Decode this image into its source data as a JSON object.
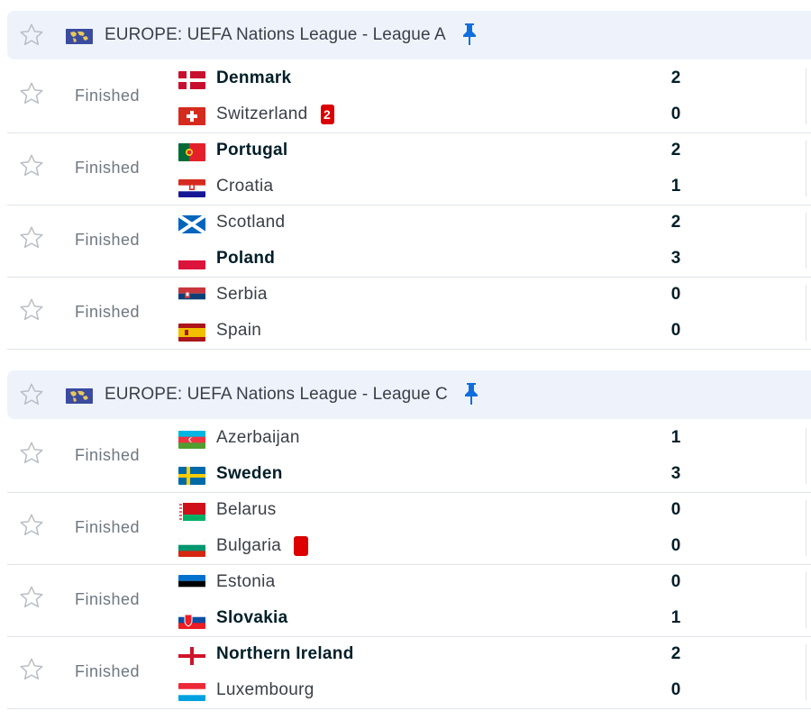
{
  "leagues": [
    {
      "title": "EUROPE: UEFA Nations League - League A",
      "matches": [
        {
          "status": "Finished",
          "home": {
            "name": "Denmark",
            "flag": "denmark-flag",
            "score": "2",
            "winner": true,
            "red_card": null
          },
          "away": {
            "name": "Switzerland",
            "flag": "switzerland-flag",
            "score": "0",
            "winner": false,
            "red_card": "2"
          }
        },
        {
          "status": "Finished",
          "home": {
            "name": "Portugal",
            "flag": "portugal-flag",
            "score": "2",
            "winner": true,
            "red_card": null
          },
          "away": {
            "name": "Croatia",
            "flag": "croatia-flag",
            "score": "1",
            "winner": false,
            "red_card": null
          }
        },
        {
          "status": "Finished",
          "home": {
            "name": "Scotland",
            "flag": "scotland-flag",
            "score": "2",
            "winner": false,
            "red_card": null
          },
          "away": {
            "name": "Poland",
            "flag": "poland-flag",
            "score": "3",
            "winner": true,
            "red_card": null
          }
        },
        {
          "status": "Finished",
          "home": {
            "name": "Serbia",
            "flag": "serbia-flag",
            "score": "0",
            "winner": false,
            "red_card": null
          },
          "away": {
            "name": "Spain",
            "flag": "spain-flag",
            "score": "0",
            "winner": false,
            "red_card": null
          }
        }
      ]
    },
    {
      "title": "EUROPE: UEFA Nations League - League C",
      "matches": [
        {
          "status": "Finished",
          "home": {
            "name": "Azerbaijan",
            "flag": "azerbaijan-flag",
            "score": "1",
            "winner": false,
            "red_card": null
          },
          "away": {
            "name": "Sweden",
            "flag": "sweden-flag",
            "score": "3",
            "winner": true,
            "red_card": null
          }
        },
        {
          "status": "Finished",
          "home": {
            "name": "Belarus",
            "flag": "belarus-flag",
            "score": "0",
            "winner": false,
            "red_card": null
          },
          "away": {
            "name": "Bulgaria",
            "flag": "bulgaria-flag",
            "score": "0",
            "winner": false,
            "red_card": ""
          }
        },
        {
          "status": "Finished",
          "home": {
            "name": "Estonia",
            "flag": "estonia-flag",
            "score": "0",
            "winner": false,
            "red_card": null
          },
          "away": {
            "name": "Slovakia",
            "flag": "slovakia-flag",
            "score": "1",
            "winner": true,
            "red_card": null
          }
        },
        {
          "status": "Finished",
          "home": {
            "name": "Northern Ireland",
            "flag": "northern-ireland-flag",
            "score": "2",
            "winner": true,
            "red_card": null
          },
          "away": {
            "name": "Luxembourg",
            "flag": "luxembourg-flag",
            "score": "0",
            "winner": false,
            "red_card": null
          }
        }
      ]
    }
  ],
  "colors": {
    "accent_blue": "#0f6fde",
    "header_bg": "#eef3fb",
    "red_card": "#dc0000",
    "divider": "#dfe3e8"
  },
  "icons": {
    "favorite": "star-outline-icon",
    "pin": "pin-icon",
    "league_flag": "world-flag-icon"
  }
}
